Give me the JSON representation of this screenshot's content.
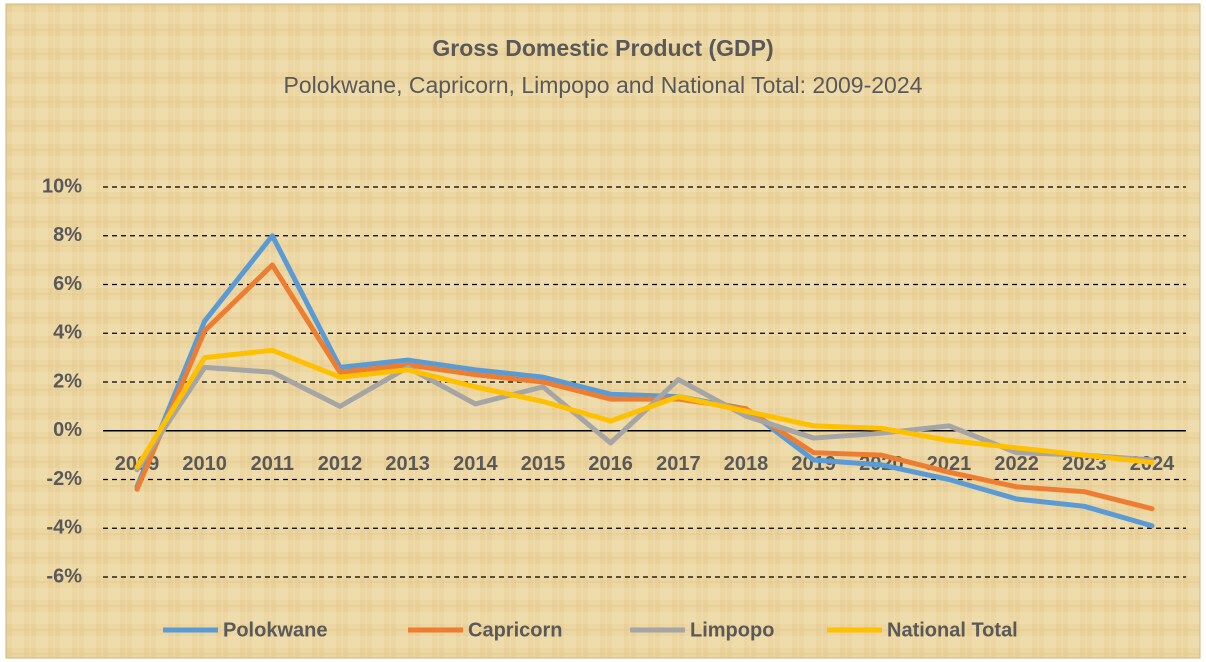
{
  "chart_data": {
    "type": "line",
    "title": "Gross Domestic Product (GDP)",
    "subtitle": "Polokwane, Capricorn, Limpopo and National Total: 2009-2024",
    "categories": [
      "2009",
      "2010",
      "2011",
      "2012",
      "2013",
      "2014",
      "2015",
      "2016",
      "2017",
      "2018",
      "2019",
      "2020",
      "2021",
      "2022",
      "2023",
      "2024"
    ],
    "series": [
      {
        "name": "Polokwane",
        "color": "#5b9bd5",
        "values": [
          -2.3,
          4.5,
          8.0,
          2.6,
          2.9,
          2.5,
          2.2,
          1.5,
          1.4,
          0.9,
          -1.2,
          -1.4,
          -2.0,
          -2.8,
          -3.1,
          -3.9
        ]
      },
      {
        "name": "Capricorn",
        "color": "#ed7d31",
        "values": [
          -2.4,
          4.1,
          6.8,
          2.4,
          2.7,
          2.3,
          2.0,
          1.3,
          1.3,
          0.9,
          -0.9,
          -1.0,
          -1.7,
          -2.3,
          -2.5,
          -3.2
        ]
      },
      {
        "name": "Limpopo",
        "color": "#a5a5a5",
        "values": [
          -1.6,
          2.6,
          2.4,
          1.0,
          2.6,
          1.1,
          1.8,
          -0.5,
          2.1,
          0.6,
          -0.3,
          -0.1,
          0.2,
          -0.9,
          -1.0,
          -1.2
        ]
      },
      {
        "name": "National Total",
        "color": "#ffc000",
        "values": [
          -1.5,
          3.0,
          3.3,
          2.2,
          2.5,
          1.8,
          1.2,
          0.4,
          1.4,
          0.8,
          0.2,
          0.1,
          -0.4,
          -0.7,
          -1.0,
          -1.3
        ]
      }
    ],
    "ylim": [
      -6,
      10
    ],
    "yticks": [
      {
        "value": -6,
        "label": "-6%"
      },
      {
        "value": -4,
        "label": "-4%"
      },
      {
        "value": -2,
        "label": "-2%"
      },
      {
        "value": 0,
        "label": "0%"
      },
      {
        "value": 2,
        "label": "2%"
      },
      {
        "value": 4,
        "label": "4%"
      },
      {
        "value": 6,
        "label": "6%"
      },
      {
        "value": 8,
        "label": "8%"
      },
      {
        "value": 10,
        "label": "10%"
      }
    ],
    "grid": true,
    "legend": "bottom"
  }
}
